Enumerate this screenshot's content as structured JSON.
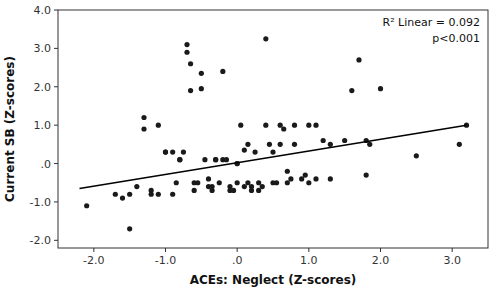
{
  "chart_data": {
    "type": "scatter",
    "xlabel": "ACEs: Neglect (Z-scores)",
    "ylabel": "Current SB (Z-scores)",
    "annotations": [
      "R² Linear = 0.092",
      "p<0.001"
    ],
    "series": [
      {
        "type": "scatter",
        "color": "#1a1a1a",
        "x": [
          -2.1,
          -1.7,
          -1.6,
          -1.5,
          -1.5,
          -1.4,
          -1.3,
          -1.3,
          -1.2,
          -1.2,
          -1.1,
          -1.1,
          -1.0,
          -1.0,
          -0.9,
          -0.9,
          -0.85,
          -0.8,
          -0.8,
          -0.75,
          -0.7,
          -0.7,
          -0.65,
          -0.65,
          -0.6,
          -0.6,
          -0.55,
          -0.5,
          -0.5,
          -0.45,
          -0.4,
          -0.4,
          -0.35,
          -0.35,
          -0.3,
          -0.3,
          -0.25,
          -0.2,
          -0.2,
          -0.15,
          -0.1,
          -0.1,
          -0.05,
          0.0,
          0.0,
          0.0,
          0.05,
          0.1,
          0.1,
          0.15,
          0.15,
          0.2,
          0.2,
          0.25,
          0.3,
          0.3,
          0.35,
          0.4,
          0.4,
          0.45,
          0.5,
          0.5,
          0.55,
          0.6,
          0.6,
          0.65,
          0.7,
          0.7,
          0.75,
          0.8,
          0.8,
          0.9,
          0.95,
          1.0,
          1.0,
          1.1,
          1.1,
          1.2,
          1.3,
          1.3,
          1.5,
          1.6,
          1.7,
          1.8,
          1.8,
          1.85,
          2.0,
          2.5,
          3.1,
          3.2
        ],
        "values": [
          -1.1,
          -0.8,
          -0.9,
          -0.8,
          -1.7,
          -0.6,
          0.9,
          1.2,
          -0.7,
          -0.8,
          1.0,
          -0.8,
          0.3,
          0.3,
          0.3,
          -0.8,
          -0.5,
          0.1,
          0.1,
          0.3,
          3.1,
          2.9,
          1.9,
          2.6,
          -0.5,
          -0.7,
          -0.5,
          2.35,
          1.95,
          0.1,
          -0.6,
          -0.4,
          -0.7,
          -0.6,
          0.1,
          0.1,
          -0.5,
          2.4,
          0.1,
          0.1,
          -0.6,
          -0.7,
          -0.7,
          -0.5,
          0.0,
          0.0,
          1.0,
          0.35,
          -0.6,
          0.5,
          -0.5,
          -0.7,
          -0.6,
          0.3,
          -0.7,
          -0.5,
          -0.6,
          3.25,
          1.0,
          0.5,
          0.3,
          -0.5,
          -0.5,
          0.5,
          1.0,
          0.9,
          -0.2,
          -0.5,
          -0.4,
          0.5,
          1.0,
          -0.4,
          -0.3,
          -0.5,
          1.0,
          1.0,
          -0.4,
          0.6,
          0.5,
          -0.4,
          0.6,
          1.9,
          2.7,
          0.6,
          -0.3,
          0.5,
          1.95,
          0.2,
          0.5,
          1.0
        ]
      },
      {
        "type": "line",
        "color": "#000000",
        "x": [
          -2.2,
          3.2
        ],
        "values": [
          -0.65,
          1.0
        ]
      }
    ],
    "xlim": [
      -2.5,
      3.5
    ],
    "ylim": [
      -2.2,
      4.0
    ],
    "xticks": [
      {
        "value": -2,
        "label": "-2.0"
      },
      {
        "value": -1,
        "label": "-1.0"
      },
      {
        "value": 0,
        "label": ".0"
      },
      {
        "value": 1,
        "label": "1.0"
      },
      {
        "value": 2,
        "label": "2.0"
      },
      {
        "value": 3,
        "label": "3.0"
      }
    ],
    "yticks": [
      {
        "value": -2,
        "label": "-2.0"
      },
      {
        "value": -1,
        "label": "-1.0"
      },
      {
        "value": 0,
        "label": ".0"
      },
      {
        "value": 1,
        "label": "1.0"
      },
      {
        "value": 2,
        "label": "2.0"
      },
      {
        "value": 3,
        "label": "3.0"
      },
      {
        "value": 4,
        "label": "4.0"
      }
    ],
    "grid": false
  }
}
